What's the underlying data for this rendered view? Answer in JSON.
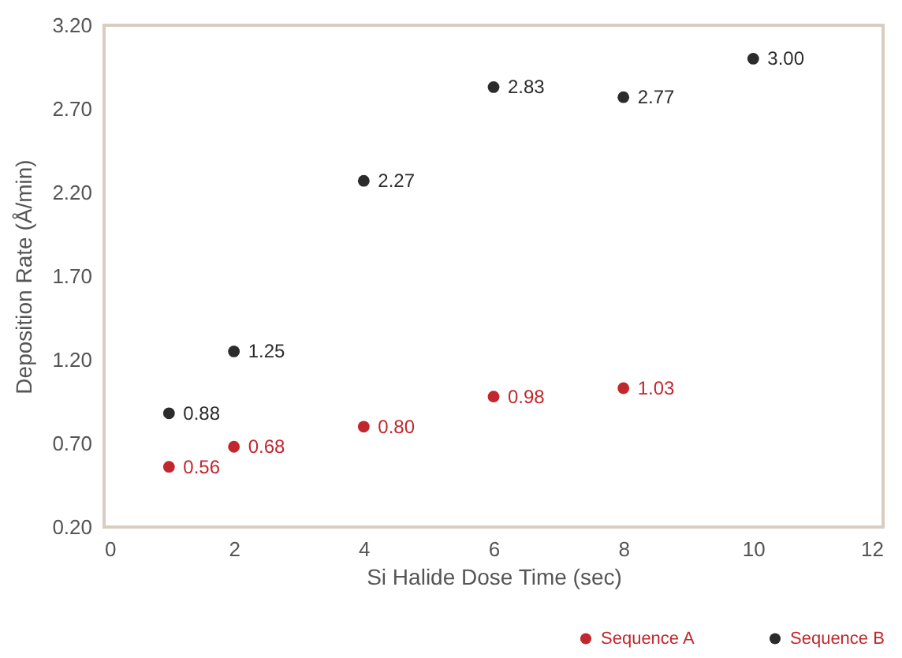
{
  "chart_data": {
    "type": "scatter",
    "xlabel": "Si Halide Dose Time (sec)",
    "ylabel": "Deposition Rate (Å/min)",
    "xlim": [
      0,
      12
    ],
    "xticks": [
      0,
      2,
      4,
      6,
      8,
      10,
      12
    ],
    "ylim": [
      0.2,
      3.2
    ],
    "yticks": [
      {
        "value": 0.2,
        "label": "0.20"
      },
      {
        "value": 0.7,
        "label": "0.70"
      },
      {
        "value": 1.2,
        "label": "1.20"
      },
      {
        "value": 1.7,
        "label": "1.70"
      },
      {
        "value": 2.2,
        "label": "2.20"
      },
      {
        "value": 2.7,
        "label": "2.70"
      },
      {
        "value": 3.2,
        "label": "3.20"
      }
    ],
    "grid": false,
    "legend": "bottom right",
    "marker": "circle",
    "series": [
      {
        "name": "Sequence A",
        "color": "#c1272d",
        "x": [
          1,
          2,
          4,
          6,
          8
        ],
        "values": [
          0.56,
          0.68,
          0.8,
          0.98,
          1.03
        ],
        "value_labels": [
          "0.56",
          "0.68",
          "0.80",
          "0.98",
          "1.03"
        ]
      },
      {
        "name": "Sequence B",
        "color": "#2b2b2b",
        "x": [
          1,
          2,
          4,
          6,
          8,
          10
        ],
        "values": [
          0.88,
          1.25,
          2.27,
          2.83,
          2.77,
          3.0
        ],
        "value_labels": [
          "0.88",
          "1.25",
          "2.27",
          "2.83",
          "2.77",
          "3.00"
        ]
      }
    ]
  }
}
